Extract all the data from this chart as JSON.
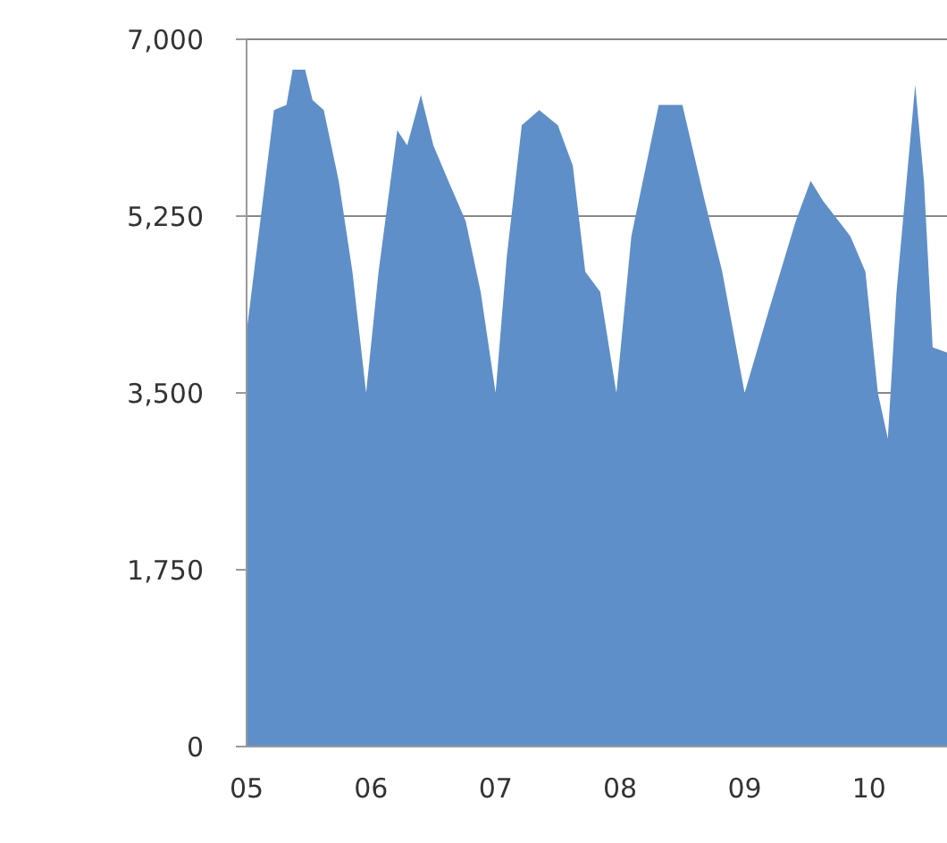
{
  "chart_data": {
    "type": "area",
    "x": [
      5,
      5.22,
      5.32,
      5.37,
      5.47,
      5.53,
      5.62,
      5.74,
      5.85,
      5.96,
      6.06,
      6.21,
      6.29,
      6.4,
      6.5,
      6.62,
      6.76,
      6.88,
      7,
      7.09,
      7.21,
      7.35,
      7.5,
      7.62,
      7.72,
      7.84,
      7.97,
      8.09,
      8.31,
      8.5,
      8.68,
      8.82,
      9,
      9.19,
      9.41,
      9.53,
      9.63,
      9.85,
      9.97,
      10.07,
      10.15,
      10.22,
      10.37,
      10.44,
      10.51,
      10.74
    ],
    "series": [
      {
        "color": "#5f8fc9",
        "values": [
          4100,
          6300,
          6350,
          6700,
          6700,
          6400,
          6300,
          5600,
          4700,
          3500,
          4700,
          6100,
          5950,
          6450,
          5950,
          5600,
          5200,
          4500,
          3500,
          4850,
          6150,
          6300,
          6150,
          5750,
          4700,
          4500,
          3500,
          5050,
          6350,
          6350,
          5400,
          4700,
          3500,
          4300,
          5200,
          5600,
          5400,
          5050,
          4700,
          3500,
          3050,
          4500,
          6550,
          5600,
          3950,
          3850
        ]
      }
    ],
    "xlim": [
      5,
      10.74
    ],
    "xticks": [
      {
        "value": 5,
        "label": "05"
      },
      {
        "value": 6,
        "label": "06"
      },
      {
        "value": 7,
        "label": "07"
      },
      {
        "value": 8,
        "label": "08"
      },
      {
        "value": 9,
        "label": "09"
      },
      {
        "value": 10,
        "label": "10"
      }
    ],
    "ylim": [
      0,
      7000
    ],
    "yticks": [
      {
        "value": 0,
        "label": "0"
      },
      {
        "value": 1750,
        "label": "1,750"
      },
      {
        "value": 3500,
        "label": "3,500"
      },
      {
        "value": 5250,
        "label": "5,250"
      },
      {
        "value": 7000,
        "label": "7,000"
      }
    ],
    "grid": "y"
  }
}
